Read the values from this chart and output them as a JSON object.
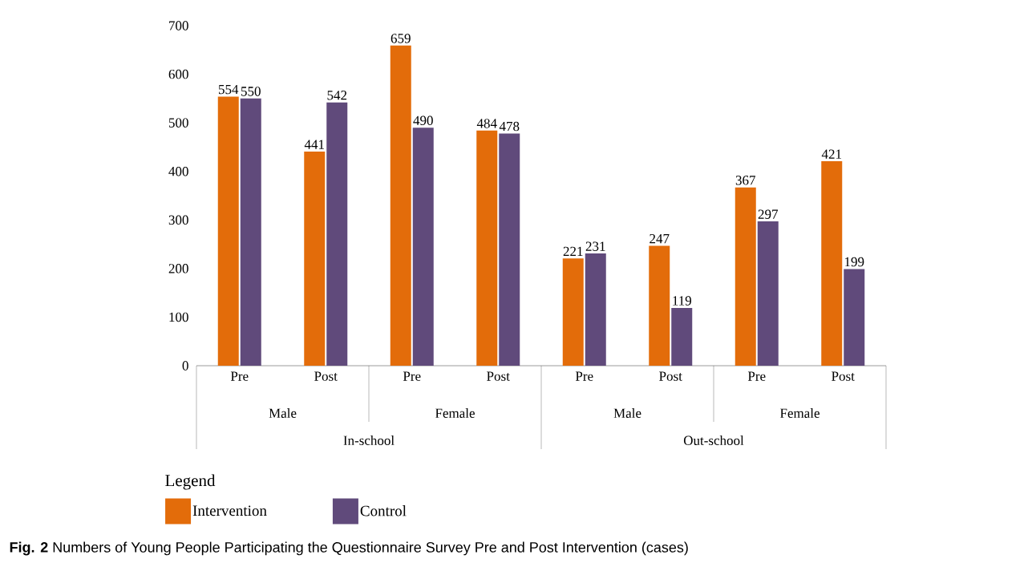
{
  "chart_data": {
    "type": "bar",
    "categories": [
      "Pre",
      "Post",
      "Pre",
      "Post",
      "Pre",
      "Post",
      "Pre",
      "Post"
    ],
    "series": [
      {
        "name": "Intervention",
        "color": "#e36c0a",
        "values": [
          554,
          441,
          659,
          484,
          221,
          247,
          367,
          421
        ]
      },
      {
        "name": "Control",
        "color": "#604a7b",
        "values": [
          550,
          542,
          490,
          478,
          231,
          119,
          297,
          199
        ]
      }
    ],
    "ylim": [
      0,
      700
    ],
    "yticks": [
      0,
      100,
      200,
      300,
      400,
      500,
      600,
      700
    ],
    "data_labels": true,
    "grid": false,
    "legend": "bottom left",
    "legend_title": "Legend",
    "annotations": [
      "Male",
      "Female",
      "Male",
      "Female",
      "In-school",
      "Out-school",
      "**Fig. 2** Numbers of Young People Participating the Questionnaire Survey Pre and Post Intervention (cases)"
    ]
  }
}
